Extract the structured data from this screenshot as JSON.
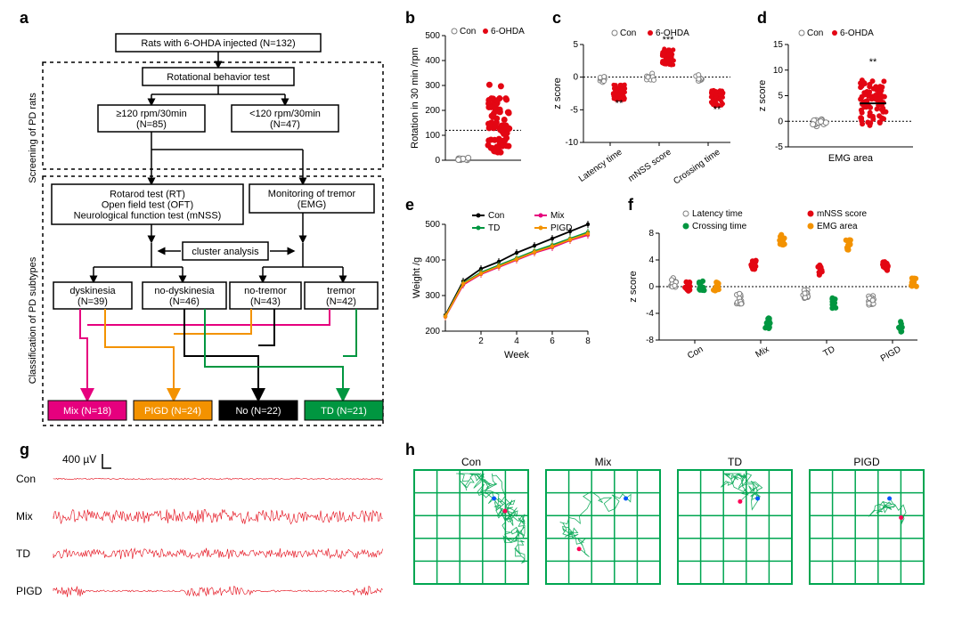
{
  "panel_a": {
    "label": "a",
    "top_box": "Rats with 6-OHDA injected  (N=132)",
    "rot_test": "Rotational behavior test",
    "ge120": "≥120 rpm/30min\n(N=85)",
    "lt120": "<120 rpm/30min\n(N=47)",
    "tests_box": "Rotarod test (RT)\nOpen field test (OFT)\nNeurological function test (mNSS)",
    "emg_box": "Monitoring of tremor\n(EMG)",
    "cluster": "cluster analysis",
    "dys": "dyskinesia\n(N=39)",
    "nodys": "no-dyskinesia\n(N=46)",
    "notremor": "no-tremor\n(N=43)",
    "tremor": "tremor\n(N=42)",
    "mix": "Mix (N=18)",
    "pigd": "PIGD (N=24)",
    "no": "No (N=22)",
    "td": "TD (N=21)",
    "side_top": "Screening  of PD rats",
    "side_bottom": "Classification of PD subtypes",
    "colors": {
      "mix": "#e6007e",
      "pigd": "#f39200",
      "no": "#000000",
      "td": "#009640"
    }
  },
  "panel_b": {
    "label": "b",
    "ylabel": "Rotation in 30 min /rpm",
    "ylim": [
      0,
      500
    ],
    "yticks": [
      0,
      100,
      200,
      300,
      400,
      500
    ],
    "legend": {
      "con": "Con",
      "ohda": "6-OHDA"
    },
    "colors": {
      "con": "#7f7f7f",
      "ohda": "#e30613"
    }
  },
  "panel_c": {
    "label": "c",
    "ylabel": "z score",
    "ylim": [
      -10,
      5
    ],
    "yticks": [
      -10,
      -5,
      0,
      5
    ],
    "cats": [
      "Latency time",
      "mNSS score",
      "Crossing time"
    ],
    "legend": {
      "con": "Con",
      "ohda": "6-OHDA"
    },
    "sig": [
      "**",
      "***",
      "**"
    ],
    "colors": {
      "con": "#7f7f7f",
      "ohda": "#e30613"
    }
  },
  "panel_d": {
    "label": "d",
    "ylabel": "z score",
    "ylim": [
      -5,
      15
    ],
    "yticks": [
      -5,
      0,
      5,
      10,
      15
    ],
    "xlabel": "EMG area",
    "legend": {
      "con": "Con",
      "ohda": "6-OHDA"
    },
    "sig": "**",
    "colors": {
      "con": "#7f7f7f",
      "ohda": "#e30613"
    }
  },
  "panel_e": {
    "label": "e",
    "ylabel": "Weight /g",
    "xlabel": "Week",
    "ylim": [
      200,
      500
    ],
    "yticks": [
      200,
      300,
      400,
      500
    ],
    "xlim": [
      0,
      8
    ],
    "xticks": [
      2,
      4,
      6,
      8
    ],
    "series": {
      "Con": {
        "color": "#000000",
        "y": [
          245,
          340,
          375,
          395,
          420,
          440,
          460,
          480,
          500
        ]
      },
      "Mix": {
        "color": "#e6007e",
        "y": [
          240,
          330,
          360,
          380,
          400,
          420,
          435,
          455,
          470
        ]
      },
      "TD": {
        "color": "#009640",
        "y": [
          242,
          335,
          365,
          385,
          405,
          425,
          442,
          460,
          478
        ]
      },
      "PIGD": {
        "color": "#f39200",
        "y": [
          241,
          333,
          362,
          382,
          402,
          422,
          438,
          457,
          474
        ]
      }
    }
  },
  "panel_f": {
    "label": "f",
    "ylabel": "z score",
    "ylim": [
      -8,
      8
    ],
    "yticks": [
      -8,
      -4,
      0,
      4,
      8
    ],
    "cats": [
      "Con",
      "Mix",
      "TD",
      "PIGD"
    ],
    "legend": {
      "Latency time": "#7f7f7f",
      "mNSS score": "#e30613",
      "Crossing time": "#009640",
      "EMG area": "#f39200"
    }
  },
  "panel_g": {
    "label": "g",
    "scale": "400 µV",
    "rows": [
      "Con",
      "Mix",
      "TD",
      "PIGD"
    ],
    "color": "#e30613"
  },
  "panel_h": {
    "label": "h",
    "titles": [
      "Con",
      "Mix",
      "TD",
      "PIGD"
    ],
    "grid_color": "#00a651",
    "trace_color": "#00a651"
  }
}
